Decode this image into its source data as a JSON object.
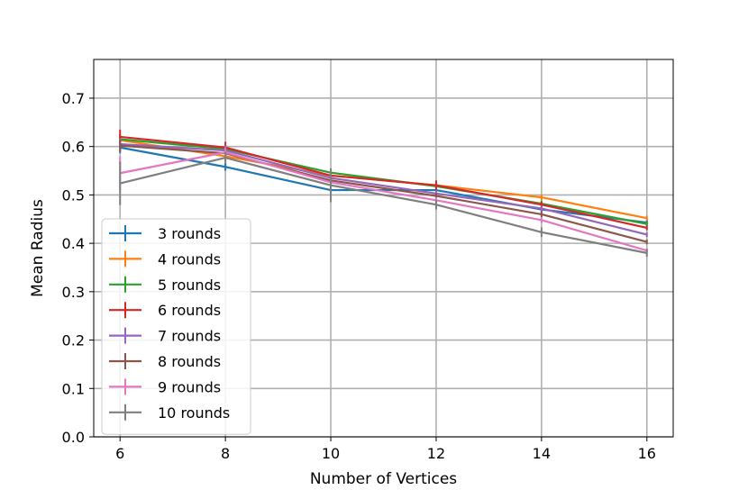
{
  "chart_data": {
    "type": "line",
    "title": "",
    "xlabel": "Number of Vertices",
    "ylabel": "Mean Radius",
    "x": [
      6,
      8,
      10,
      12,
      14,
      16
    ],
    "xticks": [
      "6",
      "8",
      "10",
      "12",
      "14",
      "16"
    ],
    "yticks": [
      "0.0",
      "0.1",
      "0.2",
      "0.3",
      "0.4",
      "0.5",
      "0.6",
      "0.7"
    ],
    "xlim": [
      5.5,
      16.5
    ],
    "ylim": [
      0,
      0.78
    ],
    "grid": true,
    "error_bars": true,
    "legend_position": "center-left",
    "series": [
      {
        "name": "3 rounds",
        "color": "#1f77b4",
        "values": [
          0.598,
          0.558,
          0.51,
          0.51,
          0.47,
          0.443
        ],
        "errors": [
          0.012,
          0.008,
          0.008,
          0.006,
          0.006,
          0.005
        ]
      },
      {
        "name": "4 rounds",
        "color": "#ff7f0e",
        "values": [
          0.613,
          0.58,
          0.54,
          0.52,
          0.495,
          0.452
        ],
        "errors": [
          0.01,
          0.01,
          0.008,
          0.006,
          0.006,
          0.005
        ]
      },
      {
        "name": "5 rounds",
        "color": "#2ca02c",
        "values": [
          0.615,
          0.595,
          0.546,
          0.518,
          0.482,
          0.44
        ],
        "errors": [
          0.01,
          0.008,
          0.008,
          0.006,
          0.006,
          0.005
        ]
      },
      {
        "name": "6 rounds",
        "color": "#d62728",
        "values": [
          0.62,
          0.598,
          0.54,
          0.52,
          0.48,
          0.432
        ],
        "errors": [
          0.015,
          0.012,
          0.008,
          0.01,
          0.006,
          0.005
        ]
      },
      {
        "name": "7 rounds",
        "color": "#9467bd",
        "values": [
          0.605,
          0.592,
          0.535,
          0.503,
          0.472,
          0.418
        ],
        "errors": [
          0.012,
          0.01,
          0.008,
          0.006,
          0.006,
          0.005
        ]
      },
      {
        "name": "8 rounds",
        "color": "#8c564b",
        "values": [
          0.602,
          0.586,
          0.53,
          0.498,
          0.46,
          0.403
        ],
        "errors": [
          0.012,
          0.01,
          0.008,
          0.006,
          0.006,
          0.005
        ]
      },
      {
        "name": "9 rounds",
        "color": "#e377c2",
        "values": [
          0.545,
          0.588,
          0.526,
          0.489,
          0.448,
          0.385
        ],
        "errors": [
          0.035,
          0.01,
          0.008,
          0.006,
          0.006,
          0.005
        ]
      },
      {
        "name": "10 rounds",
        "color": "#7f7f7f",
        "values": [
          0.524,
          0.577,
          0.52,
          0.48,
          0.423,
          0.38
        ],
        "errors": [
          0.045,
          0.012,
          0.035,
          0.01,
          0.01,
          0.008
        ]
      }
    ]
  }
}
